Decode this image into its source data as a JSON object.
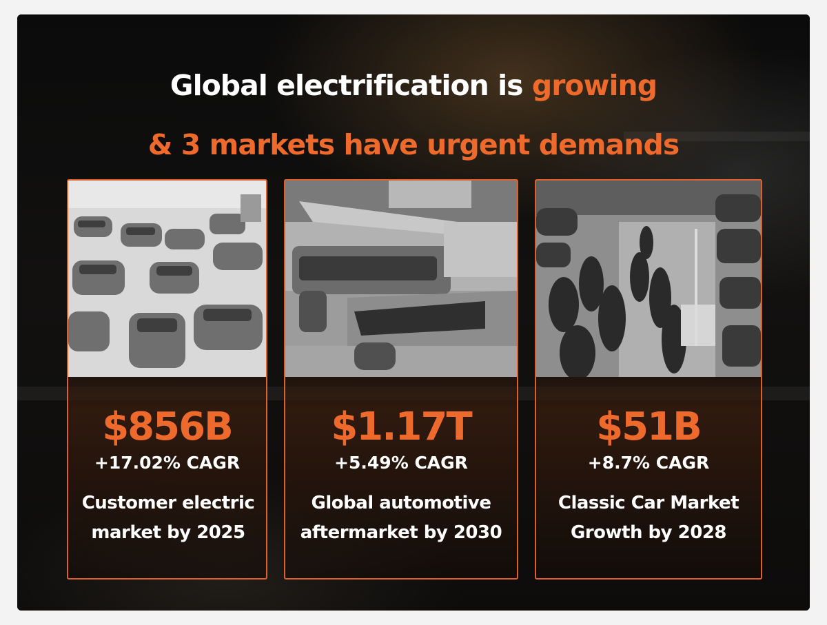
{
  "headline": {
    "line1_white": "Global electrification is ",
    "line1_accent": "growing",
    "line2_accent": "& 3 markets have urgent demands"
  },
  "colors": {
    "accent": "#ee6a2c",
    "border": "#e0602a",
    "text": "#ffffff",
    "background": "#0a0a0a"
  },
  "cards": [
    {
      "value": "$856B",
      "cagr": "+17.02% CAGR",
      "description": "Customer electric market by 2025",
      "photo": "electric-cars-lot-photo"
    },
    {
      "value": "$1.17T",
      "cagr": "+5.49% CAGR",
      "description": "Global automotive aftermarket by 2030",
      "photo": "classic-cars-open-hoods-photo"
    },
    {
      "value": "$51B",
      "cagr": "+8.7% CAGR",
      "description": "Classic Car Market Growth by 2028",
      "photo": "car-show-crowd-photo"
    }
  ]
}
